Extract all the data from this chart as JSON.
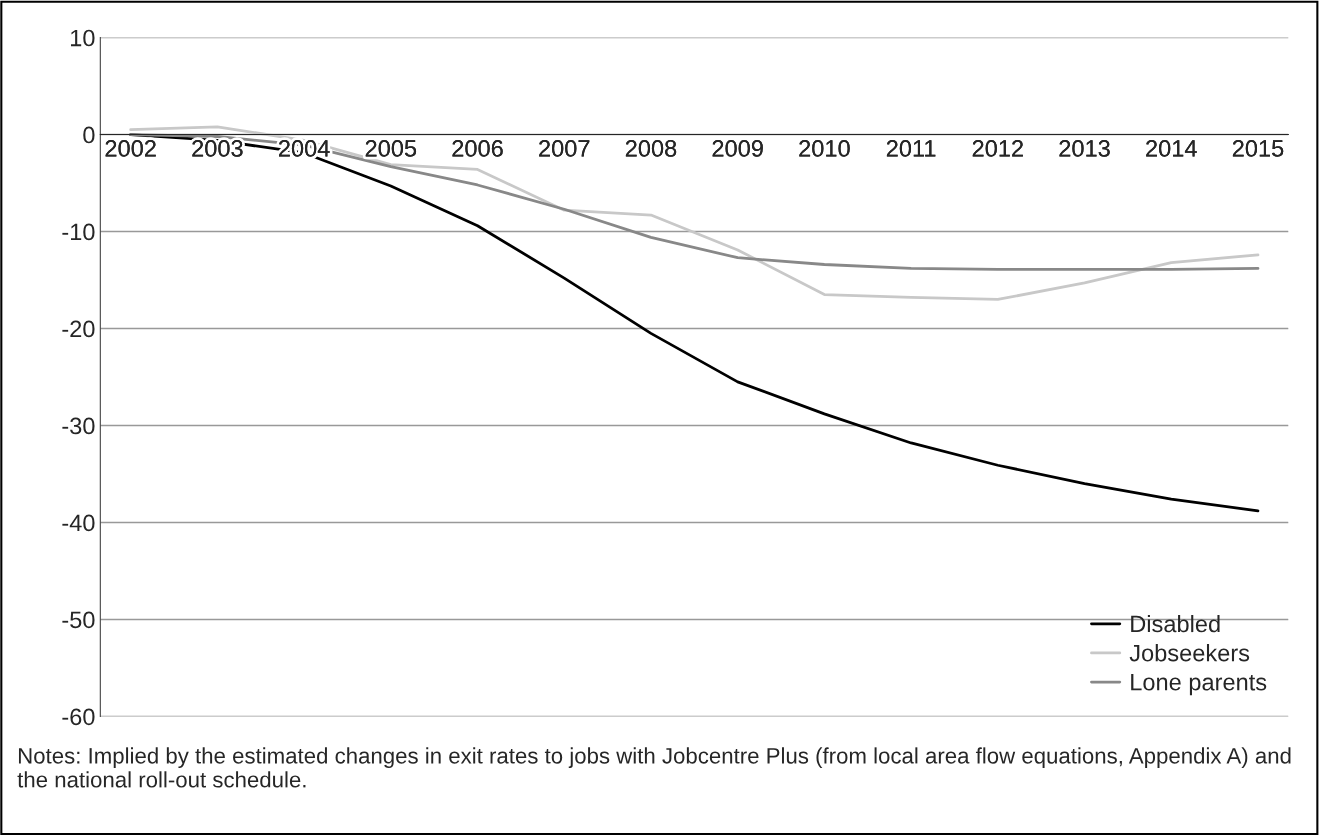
{
  "chart_data": {
    "type": "line",
    "categories": [
      "2002",
      "2003",
      "2004",
      "2005",
      "2006",
      "2007",
      "2008",
      "2009",
      "2010",
      "2011",
      "2012",
      "2013",
      "2014",
      "2015"
    ],
    "series": [
      {
        "name": "Disabled",
        "color": "#000000",
        "values": [
          0,
          -0.6,
          -1.9,
          -5.3,
          -9.4,
          -14.8,
          -20.5,
          -25.5,
          -28.8,
          -31.8,
          -34.1,
          -36.0,
          -37.6,
          -38.8
        ]
      },
      {
        "name": "Jobseekers",
        "color": "#c8c8c8",
        "values": [
          0.5,
          0.8,
          -0.6,
          -3.1,
          -3.6,
          -7.8,
          -8.3,
          -11.9,
          -16.5,
          -16.8,
          -17.0,
          -15.3,
          -13.2,
          -12.4
        ]
      },
      {
        "name": "Lone parents",
        "color": "#888888",
        "values": [
          0,
          -0.2,
          -1.1,
          -3.3,
          -5.2,
          -7.7,
          -10.6,
          -12.7,
          -13.4,
          -13.8,
          -13.9,
          -13.9,
          -13.9,
          -13.8
        ]
      }
    ],
    "ylim": [
      -60,
      10
    ],
    "yticks": [
      -60,
      -50,
      -40,
      -30,
      -20,
      -10,
      0,
      10
    ],
    "grid": "y",
    "legend": "bottom right",
    "line_style": "solid",
    "marker": "none",
    "annotations": [
      "Notes: Implied by the estimated changes in exit rates to jobs with Jobcentre Plus (from local area flow equations, Appendix A) and the national roll-out schedule."
    ]
  }
}
